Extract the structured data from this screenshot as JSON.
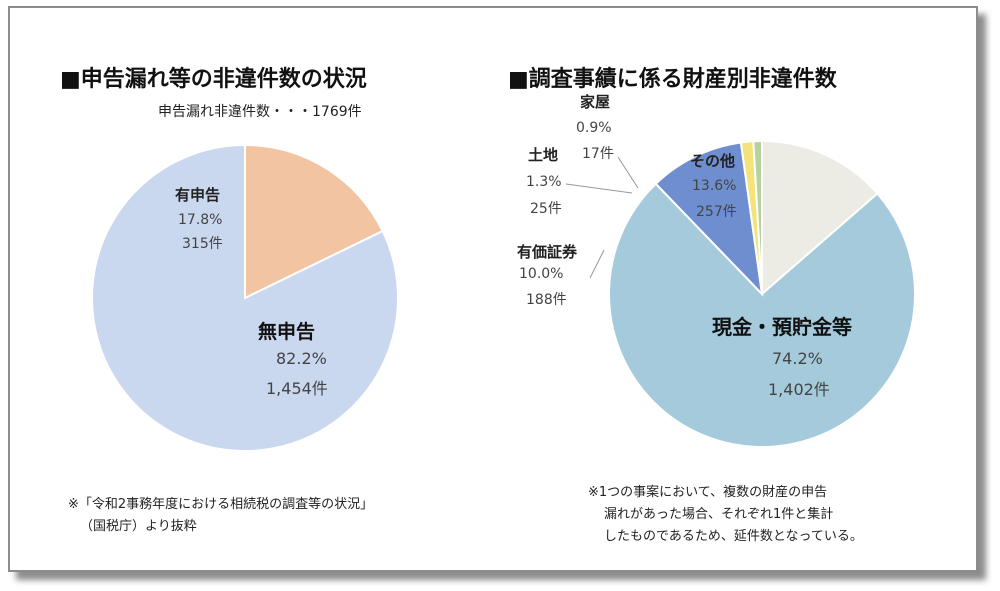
{
  "chart_data": [
    {
      "type": "pie",
      "title": "■申告漏れ等の非違件数の状況",
      "subtitle": "申告漏れ非違件数・・・1769件",
      "slices": [
        {
          "name": "有申告",
          "percent_label": "17.8%",
          "count_label": "315件",
          "value": 17.8,
          "color": "#f2c4a1"
        },
        {
          "name": "無申告",
          "percent_label": "82.2%",
          "count_label": "1,454件",
          "value": 82.2,
          "color": "#c9d7ef"
        }
      ],
      "footnote_lines": [
        "※「令和2事務年度における相続税の調査等の状況」",
        "（国税庁）より抜粋"
      ]
    },
    {
      "type": "pie",
      "title": "■調査事績に係る財産別非違件数",
      "slices": [
        {
          "name": "その他",
          "percent_label": "13.6%",
          "count_label": "257件",
          "value": 13.6,
          "color": "#ecebe4"
        },
        {
          "name": "現金・預貯金等",
          "percent_label": "74.2%",
          "count_label": "1,402件",
          "value": 74.2,
          "color": "#a4cadb"
        },
        {
          "name": "有価証券",
          "percent_label": "10.0%",
          "count_label": "188件",
          "value": 10.0,
          "color": "#6e8ecf"
        },
        {
          "name": "土地",
          "percent_label": "1.3%",
          "count_label": "25件",
          "value": 1.3,
          "color": "#f4e37a"
        },
        {
          "name": "家屋",
          "percent_label": "0.9%",
          "count_label": "17件",
          "value": 0.9,
          "color": "#b6d39c"
        }
      ],
      "footnote_lines": [
        "※1つの事案において、複数の財産の申告",
        "漏れがあった場合、それぞれ1件と集計",
        "したものであるため、延件数となっている。"
      ]
    }
  ]
}
